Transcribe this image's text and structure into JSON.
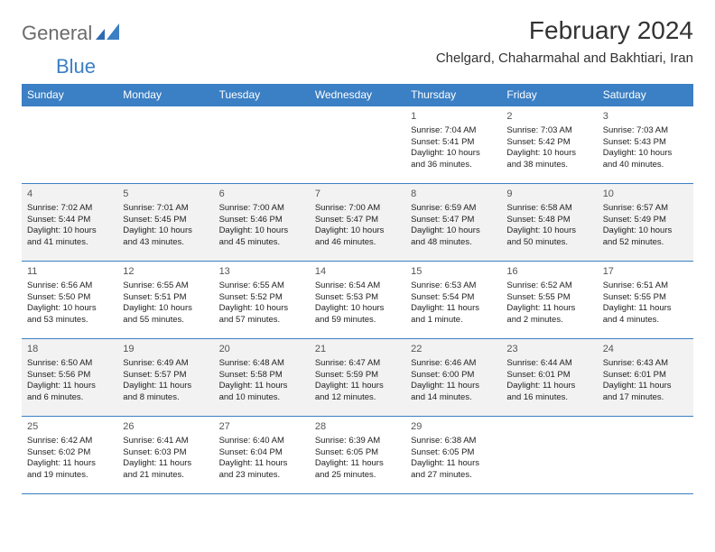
{
  "brand": {
    "text1": "General",
    "text2": "Blue"
  },
  "title": "February 2024",
  "location": "Chelgard, Chaharmahal and Bakhtiari, Iran",
  "colors": {
    "header_bg": "#3b7fc4",
    "header_text": "#ffffff",
    "row_alt_bg": "#f2f2f2",
    "text": "#222222",
    "border": "#3b7fc4"
  },
  "day_headers": [
    "Sunday",
    "Monday",
    "Tuesday",
    "Wednesday",
    "Thursday",
    "Friday",
    "Saturday"
  ],
  "weeks": [
    [
      null,
      null,
      null,
      null,
      {
        "n": "1",
        "sr": "7:04 AM",
        "ss": "5:41 PM",
        "dl": "10 hours and 36 minutes."
      },
      {
        "n": "2",
        "sr": "7:03 AM",
        "ss": "5:42 PM",
        "dl": "10 hours and 38 minutes."
      },
      {
        "n": "3",
        "sr": "7:03 AM",
        "ss": "5:43 PM",
        "dl": "10 hours and 40 minutes."
      }
    ],
    [
      {
        "n": "4",
        "sr": "7:02 AM",
        "ss": "5:44 PM",
        "dl": "10 hours and 41 minutes."
      },
      {
        "n": "5",
        "sr": "7:01 AM",
        "ss": "5:45 PM",
        "dl": "10 hours and 43 minutes."
      },
      {
        "n": "6",
        "sr": "7:00 AM",
        "ss": "5:46 PM",
        "dl": "10 hours and 45 minutes."
      },
      {
        "n": "7",
        "sr": "7:00 AM",
        "ss": "5:47 PM",
        "dl": "10 hours and 46 minutes."
      },
      {
        "n": "8",
        "sr": "6:59 AM",
        "ss": "5:47 PM",
        "dl": "10 hours and 48 minutes."
      },
      {
        "n": "9",
        "sr": "6:58 AM",
        "ss": "5:48 PM",
        "dl": "10 hours and 50 minutes."
      },
      {
        "n": "10",
        "sr": "6:57 AM",
        "ss": "5:49 PM",
        "dl": "10 hours and 52 minutes."
      }
    ],
    [
      {
        "n": "11",
        "sr": "6:56 AM",
        "ss": "5:50 PM",
        "dl": "10 hours and 53 minutes."
      },
      {
        "n": "12",
        "sr": "6:55 AM",
        "ss": "5:51 PM",
        "dl": "10 hours and 55 minutes."
      },
      {
        "n": "13",
        "sr": "6:55 AM",
        "ss": "5:52 PM",
        "dl": "10 hours and 57 minutes."
      },
      {
        "n": "14",
        "sr": "6:54 AM",
        "ss": "5:53 PM",
        "dl": "10 hours and 59 minutes."
      },
      {
        "n": "15",
        "sr": "6:53 AM",
        "ss": "5:54 PM",
        "dl": "11 hours and 1 minute."
      },
      {
        "n": "16",
        "sr": "6:52 AM",
        "ss": "5:55 PM",
        "dl": "11 hours and 2 minutes."
      },
      {
        "n": "17",
        "sr": "6:51 AM",
        "ss": "5:55 PM",
        "dl": "11 hours and 4 minutes."
      }
    ],
    [
      {
        "n": "18",
        "sr": "6:50 AM",
        "ss": "5:56 PM",
        "dl": "11 hours and 6 minutes."
      },
      {
        "n": "19",
        "sr": "6:49 AM",
        "ss": "5:57 PM",
        "dl": "11 hours and 8 minutes."
      },
      {
        "n": "20",
        "sr": "6:48 AM",
        "ss": "5:58 PM",
        "dl": "11 hours and 10 minutes."
      },
      {
        "n": "21",
        "sr": "6:47 AM",
        "ss": "5:59 PM",
        "dl": "11 hours and 12 minutes."
      },
      {
        "n": "22",
        "sr": "6:46 AM",
        "ss": "6:00 PM",
        "dl": "11 hours and 14 minutes."
      },
      {
        "n": "23",
        "sr": "6:44 AM",
        "ss": "6:01 PM",
        "dl": "11 hours and 16 minutes."
      },
      {
        "n": "24",
        "sr": "6:43 AM",
        "ss": "6:01 PM",
        "dl": "11 hours and 17 minutes."
      }
    ],
    [
      {
        "n": "25",
        "sr": "6:42 AM",
        "ss": "6:02 PM",
        "dl": "11 hours and 19 minutes."
      },
      {
        "n": "26",
        "sr": "6:41 AM",
        "ss": "6:03 PM",
        "dl": "11 hours and 21 minutes."
      },
      {
        "n": "27",
        "sr": "6:40 AM",
        "ss": "6:04 PM",
        "dl": "11 hours and 23 minutes."
      },
      {
        "n": "28",
        "sr": "6:39 AM",
        "ss": "6:05 PM",
        "dl": "11 hours and 25 minutes."
      },
      {
        "n": "29",
        "sr": "6:38 AM",
        "ss": "6:05 PM",
        "dl": "11 hours and 27 minutes."
      },
      null,
      null
    ]
  ],
  "labels": {
    "sunrise": "Sunrise: ",
    "sunset": "Sunset: ",
    "daylight": "Daylight: "
  }
}
